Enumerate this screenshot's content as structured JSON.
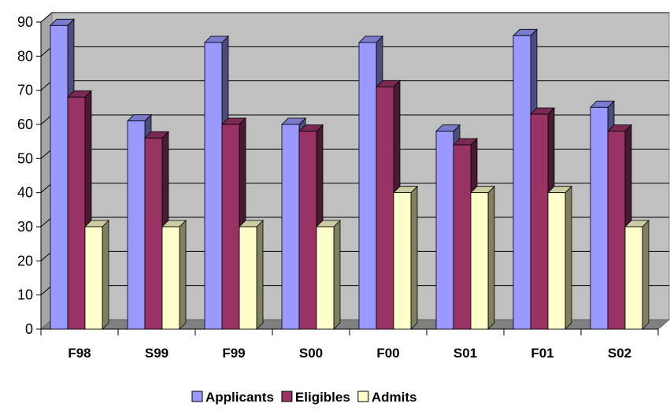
{
  "chart_data": {
    "type": "bar",
    "title": "",
    "xlabel": "",
    "ylabel": "",
    "ylim": [
      0,
      90
    ],
    "y_ticks": [
      "0",
      "10",
      "20",
      "30",
      "40",
      "50",
      "60",
      "70",
      "80",
      "90"
    ],
    "categories": [
      "F98",
      "S99",
      "F99",
      "S00",
      "F00",
      "S01",
      "F01",
      "S02"
    ],
    "series": [
      {
        "name": "Applicants",
        "values": [
          89,
          61,
          84,
          60,
          84,
          58,
          86,
          65
        ],
        "color": "#9999ff",
        "side_color": "#4c4c80",
        "top_color": "#7a7acc"
      },
      {
        "name": "Eligibles",
        "values": [
          68,
          56,
          60,
          58,
          71,
          54,
          63,
          58
        ],
        "color": "#993366",
        "side_color": "#4c1933",
        "top_color": "#7a2952"
      },
      {
        "name": "Admits",
        "values": [
          30,
          30,
          30,
          30,
          40,
          40,
          40,
          30
        ],
        "color": "#ffffcc",
        "side_color": "#80805f",
        "top_color": "#cccca3"
      }
    ],
    "grid": true,
    "legend_position": "bottom",
    "colors": {
      "wall": "#c0c0c0",
      "floor": "#808080",
      "grid": "#000000"
    }
  }
}
